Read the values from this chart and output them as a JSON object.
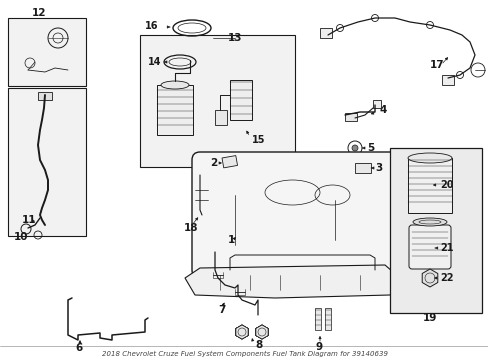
{
  "title": "2018 Chevrolet Cruze Fuel System Components Fuel Tank Diagram for 39140639",
  "bg_color": "#ffffff",
  "lc": "#1a1a1a",
  "fig_width": 4.89,
  "fig_height": 3.6,
  "dpi": 100
}
